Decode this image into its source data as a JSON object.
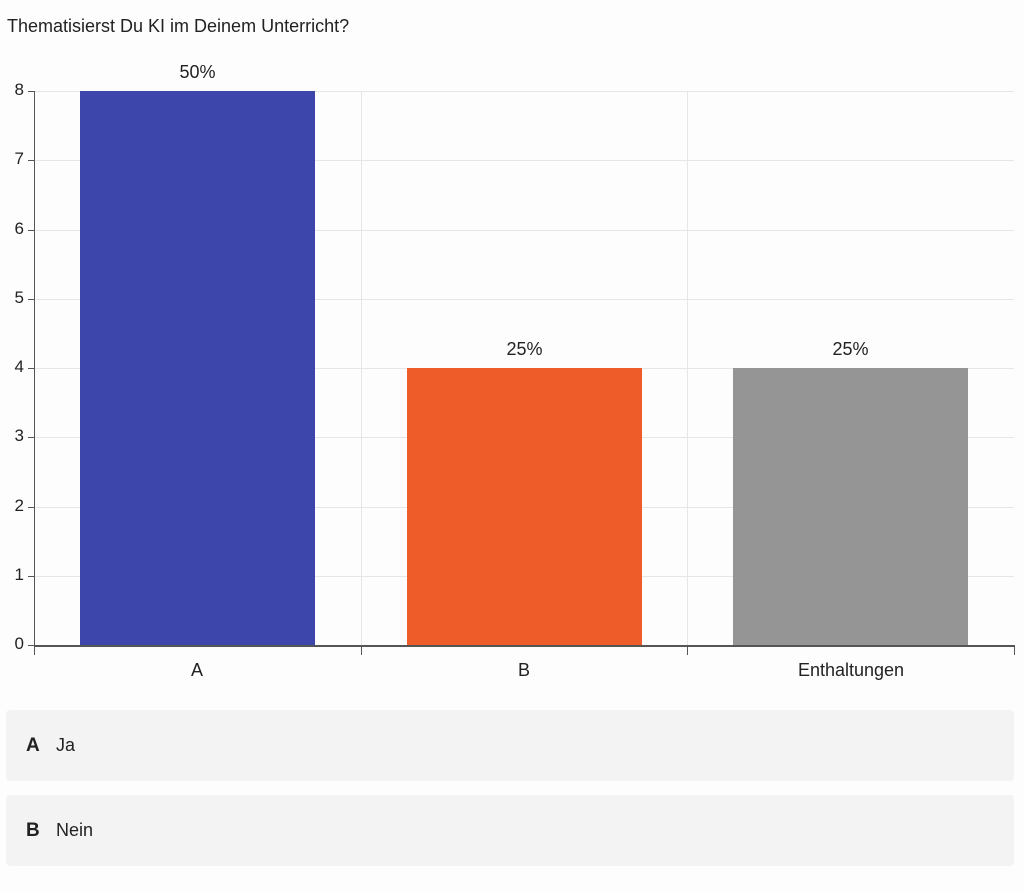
{
  "question": "Thematisierst Du KI im Deinem Unterricht?",
  "chart_data": {
    "type": "bar",
    "title": "Thematisierst Du KI im Deinem Unterricht?",
    "categories": [
      "A",
      "B",
      "Enthaltungen"
    ],
    "values": [
      8,
      4,
      4
    ],
    "percent_labels": [
      "50%",
      "25%",
      "25%"
    ],
    "colors": [
      "#3d47ab",
      "#ed5c29",
      "#959595"
    ],
    "xlabel": "",
    "ylabel": "",
    "ylim": [
      0,
      8
    ],
    "yticks": [
      0,
      1,
      2,
      3,
      4,
      5,
      6,
      7,
      8
    ],
    "grid": true,
    "legend_position": "below"
  },
  "legend": [
    {
      "key": "A",
      "text": "Ja"
    },
    {
      "key": "B",
      "text": "Nein"
    }
  ]
}
